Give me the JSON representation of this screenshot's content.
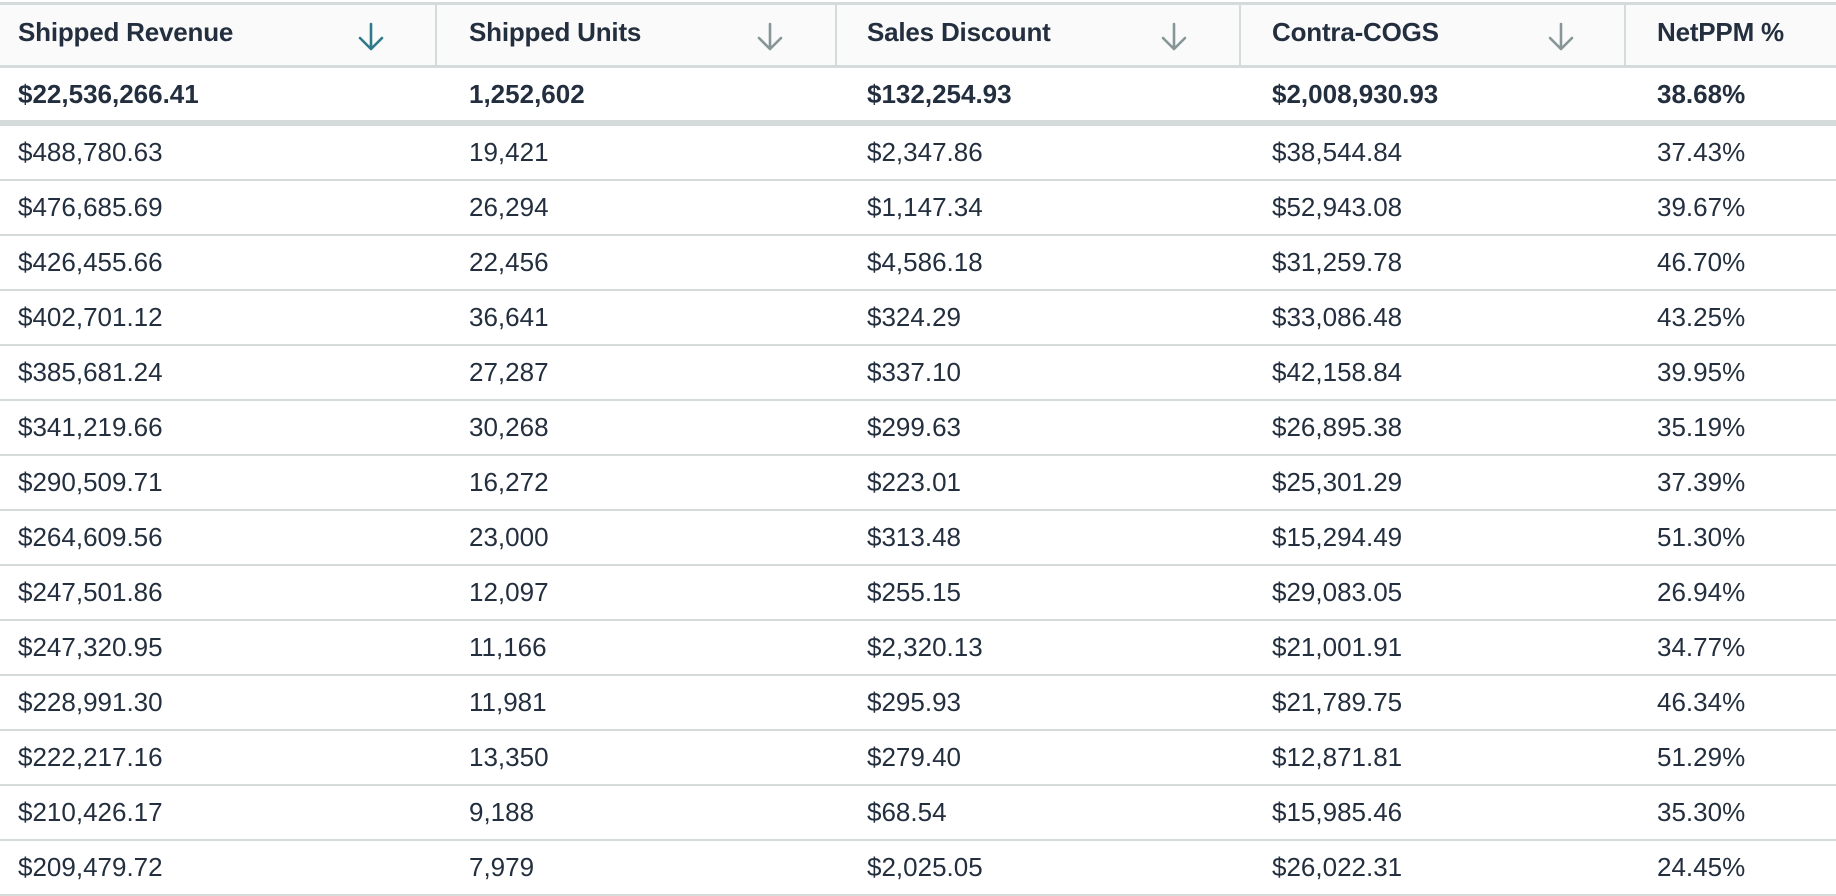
{
  "table": {
    "columns": [
      {
        "label": "Shipped Revenue",
        "sort_icon": "arrow-down-icon",
        "sorted": true,
        "sort_color": "#2e7a8a"
      },
      {
        "label": "Shipped Units",
        "sort_icon": "arrow-down-icon",
        "sorted": false,
        "sort_color": "#879596"
      },
      {
        "label": "Sales Discount",
        "sort_icon": "arrow-down-icon",
        "sorted": false,
        "sort_color": "#879596"
      },
      {
        "label": "Contra-COGS",
        "sort_icon": "arrow-down-icon",
        "sorted": false,
        "sort_color": "#879596"
      },
      {
        "label": "NetPPM %"
      }
    ],
    "totals": [
      "$22,536,266.41",
      "1,252,602",
      "$132,254.93",
      "$2,008,930.93",
      "38.68%"
    ],
    "rows": [
      [
        "$488,780.63",
        "19,421",
        "$2,347.86",
        "$38,544.84",
        "37.43%"
      ],
      [
        "$476,685.69",
        "26,294",
        "$1,147.34",
        "$52,943.08",
        "39.67%"
      ],
      [
        "$426,455.66",
        "22,456",
        "$4,586.18",
        "$31,259.78",
        "46.70%"
      ],
      [
        "$402,701.12",
        "36,641",
        "$324.29",
        "$33,086.48",
        "43.25%"
      ],
      [
        "$385,681.24",
        "27,287",
        "$337.10",
        "$42,158.84",
        "39.95%"
      ],
      [
        "$341,219.66",
        "30,268",
        "$299.63",
        "$26,895.38",
        "35.19%"
      ],
      [
        "$290,509.71",
        "16,272",
        "$223.01",
        "$25,301.29",
        "37.39%"
      ],
      [
        "$264,609.56",
        "23,000",
        "$313.48",
        "$15,294.49",
        "51.30%"
      ],
      [
        "$247,501.86",
        "12,097",
        "$255.15",
        "$29,083.05",
        "26.94%"
      ],
      [
        "$247,320.95",
        "11,166",
        "$2,320.13",
        "$21,001.91",
        "34.77%"
      ],
      [
        "$228,991.30",
        "11,981",
        "$295.93",
        "$21,789.75",
        "46.34%"
      ],
      [
        "$222,217.16",
        "13,350",
        "$279.40",
        "$12,871.81",
        "51.29%"
      ],
      [
        "$210,426.17",
        "9,188",
        "$68.54",
        "$15,985.46",
        "35.30%"
      ],
      [
        "$209,479.72",
        "7,979",
        "$2,025.05",
        "$26,022.31",
        "24.45%"
      ]
    ]
  },
  "colors": {
    "text": "#232f3e",
    "header_bg": "#fafafa",
    "divider": "#d5dbdb",
    "sort_active": "#2e7a8a",
    "sort_inactive": "#879596"
  }
}
